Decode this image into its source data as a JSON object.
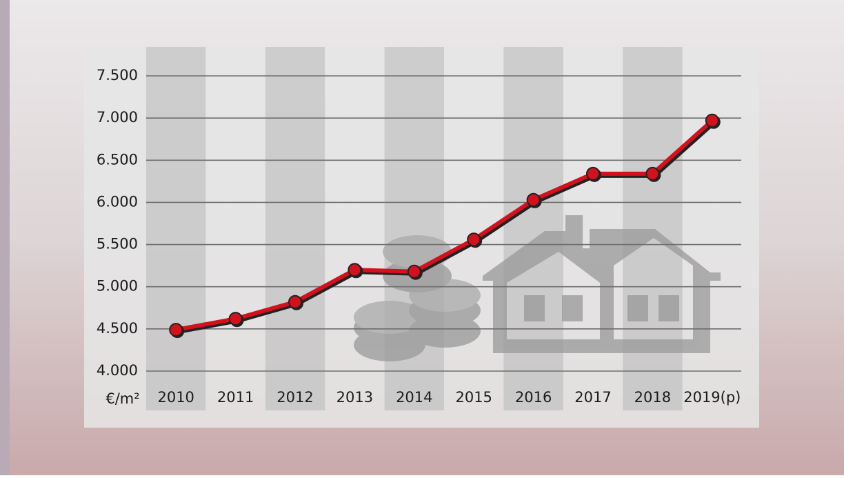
{
  "chart_data": {
    "type": "line",
    "unit_label": "€/m²",
    "categories": [
      "2010",
      "2011",
      "2012",
      "2013",
      "2014",
      "2015",
      "2016",
      "2017",
      "2018",
      "2019(p)"
    ],
    "values": [
      4490,
      4620,
      4820,
      5200,
      5180,
      5560,
      6030,
      6340,
      6340,
      6970
    ],
    "color": "#d3111d",
    "ylim": [
      4000,
      7500
    ],
    "yticks": [
      {
        "value": 4000,
        "label": "4.000"
      },
      {
        "value": 4500,
        "label": "4.500"
      },
      {
        "value": 5000,
        "label": "5.000"
      },
      {
        "value": 5500,
        "label": "5.500"
      },
      {
        "value": 6000,
        "label": "6.000"
      },
      {
        "value": 6500,
        "label": "6.500"
      },
      {
        "value": 7000,
        "label": "7.000"
      },
      {
        "value": 7500,
        "label": "7.500"
      }
    ],
    "grid": true
  }
}
